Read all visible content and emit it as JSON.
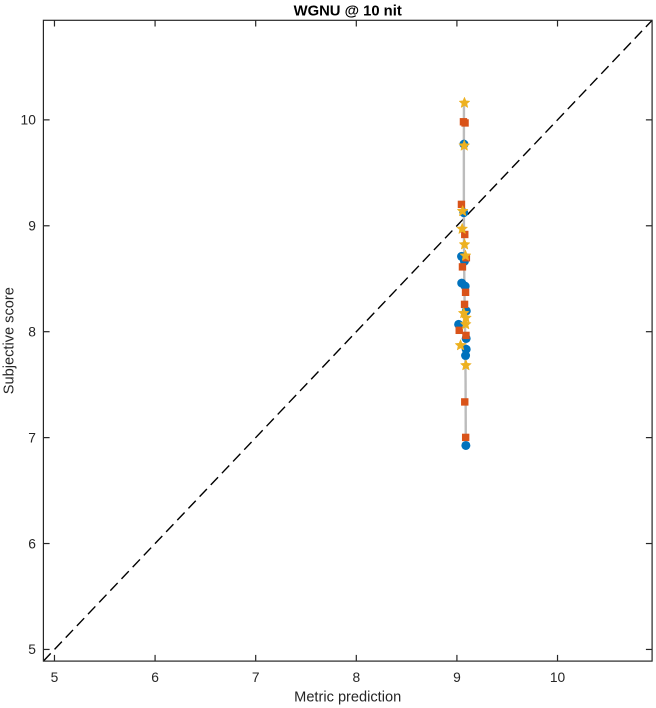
{
  "figure": {
    "title": "WGNU @ 10 nit",
    "xlabel": "Metric prediction",
    "ylabel": "Subjective score"
  },
  "chart_data": {
    "type": "scatter",
    "title": "WGNU @ 10 nit",
    "xlabel": "Metric prediction",
    "ylabel": "Subjective score",
    "xlim": [
      4.89,
      10.94
    ],
    "ylim": [
      4.89,
      10.94
    ],
    "x_ticks": [
      5,
      6,
      7,
      8,
      9,
      10
    ],
    "y_ticks": [
      5,
      6,
      7,
      8,
      9,
      10
    ],
    "grid": false,
    "legend": "none",
    "box": true,
    "tick_direction": "in",
    "identity_line": {
      "style": "dashed",
      "color": "#000000",
      "from": [
        4.89,
        4.89
      ],
      "to": [
        10.94,
        10.94
      ]
    },
    "fit_line": {
      "style": "solid",
      "color": "#bcbcbc",
      "points": [
        [
          9.07,
          10.16
        ],
        [
          9.069,
          9.715
        ],
        [
          9.069,
          9.149
        ],
        [
          9.071,
          8.724
        ],
        [
          9.074,
          8.441
        ],
        [
          9.078,
          8.205
        ],
        [
          9.083,
          7.921
        ],
        [
          9.086,
          7.544
        ],
        [
          9.088,
          7.002
        ]
      ]
    },
    "series": [
      {
        "name": "circle markers",
        "marker": "circle",
        "color": "#0072BD",
        "points": [
          [
            9.07,
            9.771
          ],
          [
            9.068,
            9.124
          ],
          [
            9.046,
            8.711
          ],
          [
            9.075,
            8.666
          ],
          [
            9.048,
            8.459
          ],
          [
            9.082,
            8.43
          ],
          [
            9.093,
            8.196
          ],
          [
            9.017,
            8.069
          ],
          [
            9.092,
            7.936
          ],
          [
            9.092,
            7.834
          ],
          [
            9.086,
            7.775
          ],
          [
            9.089,
            6.926
          ]
        ]
      },
      {
        "name": "square markers",
        "marker": "square",
        "color": "#D95319",
        "points": [
          [
            9.065,
            9.982
          ],
          [
            9.081,
            9.971
          ],
          [
            9.045,
            9.202
          ],
          [
            9.078,
            8.918
          ],
          [
            9.094,
            8.698
          ],
          [
            9.055,
            8.612
          ],
          [
            9.086,
            8.372
          ],
          [
            9.076,
            8.258
          ],
          [
            9.023,
            8.013
          ],
          [
            9.09,
            7.965
          ],
          [
            9.078,
            7.337
          ],
          [
            9.087,
            7.002
          ]
        ]
      },
      {
        "name": "star markers",
        "marker": "pentagram",
        "color": "#EDB120",
        "points": [
          [
            9.075,
            10.16
          ],
          [
            9.073,
            9.756
          ],
          [
            9.057,
            9.138
          ],
          [
            9.052,
            8.97
          ],
          [
            9.076,
            8.823
          ],
          [
            9.085,
            8.717
          ],
          [
            9.068,
            8.174
          ],
          [
            9.09,
            8.13
          ],
          [
            9.087,
            8.069
          ],
          [
            9.036,
            7.871
          ],
          [
            9.089,
            7.682
          ]
        ]
      }
    ],
    "axis_color": "#262626",
    "background": "#ffffff"
  }
}
